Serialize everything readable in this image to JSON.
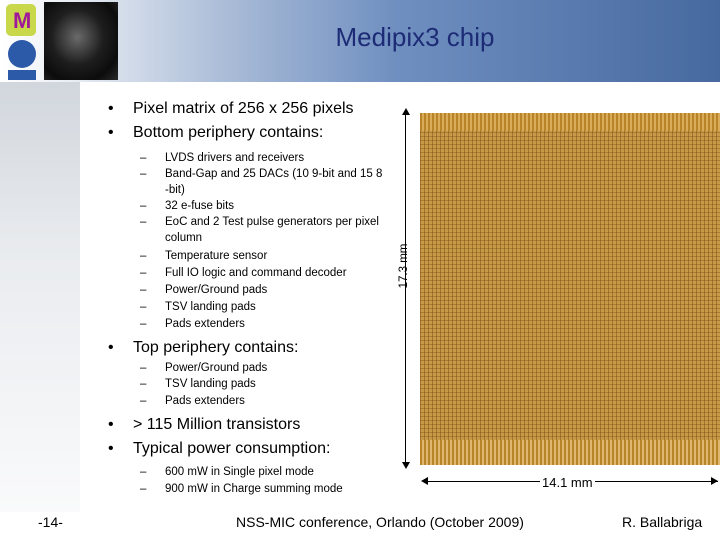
{
  "title": "Medipix3 chip",
  "bullets_top": [
    "Pixel matrix of 256 x 256 pixels",
    "Bottom periphery contains:"
  ],
  "bottom_periphery": [
    "LVDS drivers and receivers",
    "Band-Gap  and 25 DACs (10 9-bit and 15 8",
    "-bit)",
    "32 e-fuse bits",
    "EoC and 2 Test pulse generators per pixel",
    "column",
    "Temperature sensor",
    "Full IO logic and command decoder",
    "Power/Ground pads",
    "TSV landing pads",
    "Pads extenders"
  ],
  "bullet_mid": "Top periphery contains:",
  "top_periphery": [
    "Power/Ground pads",
    "TSV landing pads",
    "Pads extenders"
  ],
  "bullets_lower": [
    "> 115 Million transistors",
    "Typical power consumption:"
  ],
  "power": [
    "600 mW in Single pixel mode",
    "900 mW in Charge summing mode"
  ],
  "dim_vertical": "17.3 mm",
  "dim_horizontal": "14.1 mm",
  "footer": {
    "page": "-14-",
    "conference": "NSS-MIC conference, Orlando (October 2009)",
    "author": "R. Ballabriga"
  },
  "bullet_char": "•",
  "dash_char": "–",
  "logo_letter": "M"
}
